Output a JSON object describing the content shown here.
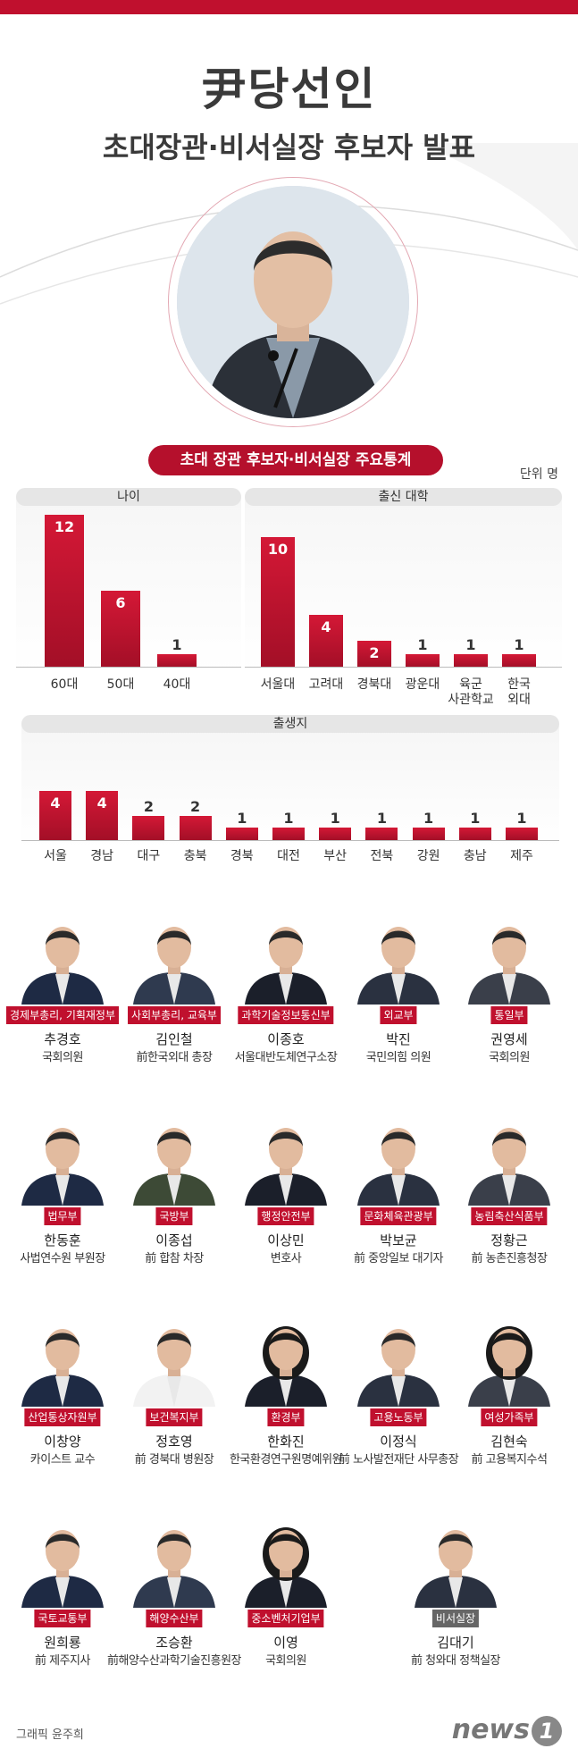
{
  "header": {
    "title": "尹당선인",
    "subtitle": "초대장관·비서실장 후보자 발표"
  },
  "stats_title": "초대 장관 후보자·비서실장 주요통계",
  "unit": "단위 명",
  "colors": {
    "accent": "#c0102e",
    "grey_badge": "#666666"
  },
  "chart_data": [
    {
      "type": "bar",
      "title": "나이",
      "categories": [
        "60대",
        "50대",
        "40대"
      ],
      "values": [
        12,
        6,
        1
      ]
    },
    {
      "type": "bar",
      "title": "출신 대학",
      "categories": [
        "서울대",
        "고려대",
        "경북대",
        "광운대",
        "육군\n사관학교",
        "한국\n외대"
      ],
      "values": [
        10,
        4,
        2,
        1,
        1,
        1
      ]
    },
    {
      "type": "bar",
      "title": "출생지",
      "categories": [
        "서울",
        "경남",
        "대구",
        "충북",
        "경북",
        "대전",
        "부산",
        "전북",
        "강원",
        "충남",
        "제주"
      ],
      "values": [
        4,
        4,
        2,
        2,
        1,
        1,
        1,
        1,
        1,
        1,
        1
      ]
    }
  ],
  "people": [
    {
      "ministry": "경제부총리, 기획재정부",
      "name": "추경호",
      "role": "국회의원"
    },
    {
      "ministry": "사회부총리, 교육부",
      "name": "김인철",
      "role": "前한국외대 총장"
    },
    {
      "ministry": "과학기술정보통신부",
      "name": "이종호",
      "role": "서울대반도체연구소장"
    },
    {
      "ministry": "외교부",
      "name": "박진",
      "role": "국민의힘 의원"
    },
    {
      "ministry": "통일부",
      "name": "권영세",
      "role": "국회의원"
    },
    {
      "ministry": "법무부",
      "name": "한동훈",
      "role": "사법연수원 부원장"
    },
    {
      "ministry": "국방부",
      "name": "이종섭",
      "role": "前 합참 차장"
    },
    {
      "ministry": "행정안전부",
      "name": "이상민",
      "role": "변호사"
    },
    {
      "ministry": "문화체육관광부",
      "name": "박보균",
      "role": "前 중앙일보 대기자"
    },
    {
      "ministry": "농림축산식품부",
      "name": "정황근",
      "role": "前 농촌진흥청장"
    },
    {
      "ministry": "산업통상자원부",
      "name": "이창양",
      "role": "카이스트 교수"
    },
    {
      "ministry": "보건복지부",
      "name": "정호영",
      "role": "前 경북대 병원장"
    },
    {
      "ministry": "환경부",
      "name": "한화진",
      "role": "한국환경연구원명예위원"
    },
    {
      "ministry": "고용노동부",
      "name": "이정식",
      "role": "前 노사발전재단 사무총장"
    },
    {
      "ministry": "여성가족부",
      "name": "김현숙",
      "role": "前 고용복지수석"
    },
    {
      "ministry": "국토교통부",
      "name": "원희룡",
      "role": "前 제주지사"
    },
    {
      "ministry": "해양수산부",
      "name": "조승환",
      "role": "前해양수산과학기술진흥원장"
    },
    {
      "ministry": "중소벤처기업부",
      "name": "이영",
      "role": "국회의원"
    },
    {
      "ministry": "비서실장",
      "name": "김대기",
      "role": "前 청와대 정책실장"
    }
  ],
  "footer": {
    "credit": "그래픽 윤주희",
    "logo_text": "news",
    "logo_mark": "1"
  }
}
